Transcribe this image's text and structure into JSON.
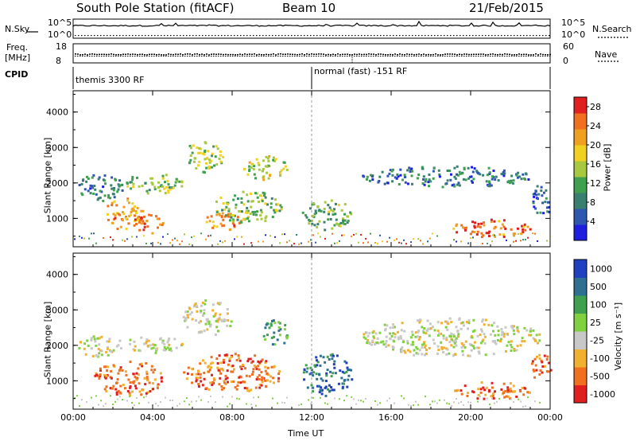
{
  "header": {
    "station": "South Pole Station (fitACF)",
    "beam": "Beam 10",
    "date": "21/Feb/2015"
  },
  "top_panels": {
    "nsky_label": "N.Sky",
    "nsearch_label": "N.Search",
    "nsky_ticks": [
      "10^5",
      "10^0"
    ],
    "freq_label_1": "Freq.",
    "freq_label_2": "[MHz]",
    "freq_ticks": [
      "18",
      "8"
    ],
    "nave_label": "Nave",
    "nave_ticks": [
      "60",
      "0"
    ],
    "cpid_label": "CPID",
    "cpid_segments": [
      "themis 3300 RF",
      "normal (fast) -151 RF"
    ]
  },
  "chart_data": [
    {
      "type": "heatmap",
      "name": "power",
      "ylabel": "Slant Range [km]",
      "xlabel": "",
      "x_ticks": [
        "00:00",
        "04:00",
        "08:00",
        "12:00",
        "16:00",
        "20:00",
        "00:00"
      ],
      "y_ticks": [
        1000,
        2000,
        3000,
        4000
      ],
      "ylim": [
        200,
        4600
      ],
      "xlim_hours": [
        0,
        24
      ],
      "colorbar": {
        "label": "Power [dB]",
        "ticks": [
          4,
          8,
          12,
          16,
          20,
          24,
          28
        ],
        "range": [
          0,
          30
        ],
        "colors": [
          "#1f1fe0",
          "#2f57b0",
          "#3a8070",
          "#40a050",
          "#a8c840",
          "#f0d020",
          "#f0a020",
          "#f07020",
          "#e02020"
        ]
      },
      "blobs": [
        {
          "t": [
            0.2,
            2.5
          ],
          "r": [
            1500,
            2300
          ],
          "v": 8
        },
        {
          "t": [
            1.5,
            3.5
          ],
          "r": [
            700,
            1600
          ],
          "v": 22
        },
        {
          "t": [
            3.0,
            4.5
          ],
          "r": [
            600,
            1200
          ],
          "v": 25
        },
        {
          "t": [
            2.5,
            5.5
          ],
          "r": [
            1700,
            2300
          ],
          "v": 14
        },
        {
          "t": [
            5.5,
            7.5
          ],
          "r": [
            2300,
            3200
          ],
          "v": 15
        },
        {
          "t": [
            6.5,
            8.5
          ],
          "r": [
            700,
            1200
          ],
          "v": 22
        },
        {
          "t": [
            7.0,
            10.5
          ],
          "r": [
            900,
            1800
          ],
          "v": 14
        },
        {
          "t": [
            8.5,
            10.8
          ],
          "r": [
            2100,
            2800
          ],
          "v": 16
        },
        {
          "t": [
            11.5,
            14.0
          ],
          "r": [
            700,
            1600
          ],
          "v": 12
        },
        {
          "t": [
            14.5,
            23.0
          ],
          "r": [
            1900,
            2500
          ],
          "v": 7
        },
        {
          "t": [
            19.0,
            23.0
          ],
          "r": [
            500,
            1000
          ],
          "v": 24
        },
        {
          "t": [
            23.0,
            24.0
          ],
          "r": [
            1000,
            2000
          ],
          "v": 6
        }
      ]
    },
    {
      "type": "heatmap",
      "name": "velocity",
      "ylabel": "Slant Range [km]",
      "xlabel": "Time UT",
      "x_ticks": [
        "00:00",
        "04:00",
        "08:00",
        "12:00",
        "16:00",
        "20:00",
        "00:00"
      ],
      "y_ticks": [
        1000,
        2000,
        3000,
        4000
      ],
      "ylim": [
        200,
        4600
      ],
      "xlim_hours": [
        0,
        24
      ],
      "colorbar": {
        "label": "Velocity [m s⁻¹]",
        "ticks": [
          "1000",
          "500",
          "100",
          "25",
          "-25",
          "-100",
          "-500",
          "-1000"
        ],
        "colors": [
          "#2040c0",
          "#2f7090",
          "#40a050",
          "#80d040",
          "#c8c8c8",
          "#f0b030",
          "#f07020",
          "#e02020"
        ]
      },
      "blobs": [
        {
          "t": [
            0.2,
            2.5
          ],
          "r": [
            1700,
            2300
          ],
          "v": "-25"
        },
        {
          "t": [
            1.0,
            4.5
          ],
          "r": [
            600,
            1600
          ],
          "v": "-500"
        },
        {
          "t": [
            2.5,
            5.5
          ],
          "r": [
            1800,
            2300
          ],
          "v": "-25"
        },
        {
          "t": [
            5.5,
            8.0
          ],
          "r": [
            2300,
            3300
          ],
          "v": "-25"
        },
        {
          "t": [
            5.5,
            10.5
          ],
          "r": [
            700,
            1800
          ],
          "v": "-500"
        },
        {
          "t": [
            9.5,
            10.8
          ],
          "r": [
            2000,
            2800
          ],
          "v": "100"
        },
        {
          "t": [
            11.5,
            14.0
          ],
          "r": [
            600,
            1800
          ],
          "v": "500"
        },
        {
          "t": [
            14.5,
            23.5
          ],
          "r": [
            1700,
            2800
          ],
          "v": "-25"
        },
        {
          "t": [
            19.0,
            23.0
          ],
          "r": [
            500,
            1000
          ],
          "v": "-500"
        },
        {
          "t": [
            23.0,
            24.0
          ],
          "r": [
            1000,
            1800
          ],
          "v": "-500"
        }
      ]
    }
  ]
}
